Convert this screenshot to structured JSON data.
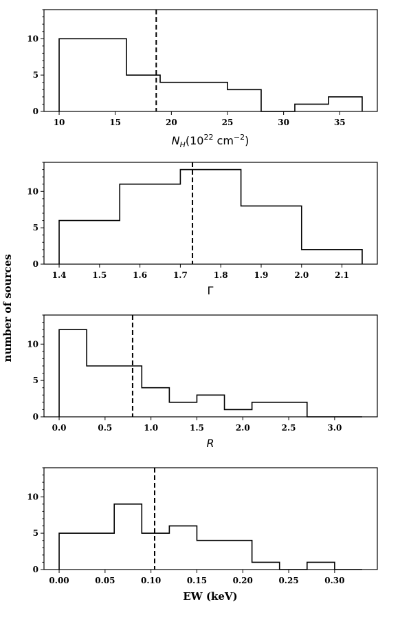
{
  "figure": {
    "ylabel": "number of sources"
  },
  "chart_data": [
    {
      "type": "histogram",
      "xlabel_parts": {
        "base": "N",
        "sub": "H",
        "paren_open": "(10",
        "exp": "22",
        "unit": " cm",
        "unit_exp": "−2",
        "paren_close": ")"
      },
      "bin_edges": [
        10,
        16,
        19,
        25,
        28,
        31,
        34,
        37
      ],
      "counts": [
        10,
        5,
        4,
        3,
        0,
        1,
        2
      ],
      "xlim": [
        8.65,
        38.35
      ],
      "ylim": [
        0,
        14
      ],
      "xticks": [
        10,
        15,
        20,
        25,
        30,
        35
      ],
      "xtick_labels": [
        "10",
        "15",
        "20",
        "25",
        "30",
        "35"
      ],
      "yticks": [
        0,
        5,
        10
      ],
      "ytick_labels": [
        "0",
        "5",
        "10"
      ],
      "mean_line": 18.65,
      "grid": false
    },
    {
      "type": "histogram",
      "xlabel": "Γ",
      "bin_edges": [
        1.4,
        1.55,
        1.7,
        1.85,
        2.0,
        2.15
      ],
      "counts": [
        6,
        11,
        13,
        8,
        2
      ],
      "xlim": [
        1.3625,
        2.1875
      ],
      "ylim": [
        0,
        14
      ],
      "xticks": [
        1.4,
        1.5,
        1.6,
        1.7,
        1.8,
        1.9,
        2.0,
        2.1
      ],
      "xtick_labels": [
        "1.4",
        "1.5",
        "1.6",
        "1.7",
        "1.8",
        "1.9",
        "2.0",
        "2.1"
      ],
      "yticks": [
        0,
        5,
        10
      ],
      "ytick_labels": [
        "0",
        "5",
        "10"
      ],
      "mean_line": 1.73,
      "grid": false
    },
    {
      "type": "histogram",
      "xlabel": "R",
      "bin_edges": [
        0,
        0.3,
        0.9,
        1.2,
        1.5,
        1.8,
        2.1,
        2.7,
        3.3
      ],
      "counts": [
        12,
        7,
        4,
        2,
        3,
        1,
        2,
        0
      ],
      "xlim": [
        -0.165,
        3.465
      ],
      "ylim": [
        0,
        14
      ],
      "xticks": [
        0,
        0.5,
        1.0,
        1.5,
        2.0,
        2.5,
        3.0
      ],
      "xtick_labels": [
        "0.0",
        "0.5",
        "1.0",
        "1.5",
        "2.0",
        "2.5",
        "3.0"
      ],
      "yticks": [
        0,
        5,
        10
      ],
      "ytick_labels": [
        "0",
        "5",
        "10"
      ],
      "mean_line": 0.8,
      "grid": false
    },
    {
      "type": "histogram",
      "xlabel": "EW (keV)",
      "bin_edges": [
        0,
        0.06,
        0.09,
        0.12,
        0.15,
        0.21,
        0.24,
        0.27,
        0.3,
        0.33
      ],
      "counts": [
        5,
        9,
        5,
        6,
        4,
        1,
        0,
        1,
        0
      ],
      "xlim": [
        -0.0165,
        0.3465
      ],
      "ylim": [
        0,
        14
      ],
      "xticks": [
        0,
        0.05,
        0.1,
        0.15,
        0.2,
        0.25,
        0.3
      ],
      "xtick_labels": [
        "0.00",
        "0.05",
        "0.10",
        "0.15",
        "0.20",
        "0.25",
        "0.30"
      ],
      "yticks": [
        0,
        5,
        10
      ],
      "ytick_labels": [
        "0",
        "5",
        "10"
      ],
      "mean_line": 0.104,
      "grid": false
    }
  ]
}
